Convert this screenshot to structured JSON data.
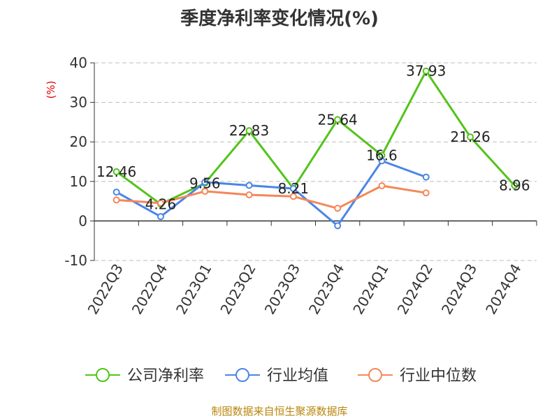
{
  "title": "季度净利率变化情况(%)",
  "source": "制图数据来自恒生聚源数据库",
  "colors": {
    "company": "#52c41a",
    "industry_avg": "#4a86e8",
    "industry_median": "#f4875a",
    "ylabel": "#e00000"
  },
  "chart_data": {
    "type": "line",
    "title": "季度净利率变化情况(%)",
    "xlabel": "",
    "ylabel": "(%)",
    "ylim": [
      -10,
      40
    ],
    "yticks": [
      -10,
      0,
      10,
      20,
      30,
      40
    ],
    "grid": true,
    "legend_position": "bottom",
    "categories": [
      "2022Q3",
      "2022Q4",
      "2023Q1",
      "2023Q2",
      "2023Q3",
      "2023Q4",
      "2024Q1",
      "2024Q2",
      "2024Q3",
      "2024Q4"
    ],
    "series": [
      {
        "name": "公司净利率",
        "values": [
          12.46,
          4.26,
          9.56,
          22.83,
          8.21,
          25.64,
          16.6,
          37.93,
          21.26,
          8.96
        ],
        "labels": [
          "12.46",
          "4.26",
          "9.56",
          "22.83",
          "8.21",
          "25.64",
          "16.6",
          "37.93",
          "21.26",
          "8.96"
        ]
      },
      {
        "name": "行业均值",
        "values": [
          7.3,
          1.1,
          9.8,
          9.0,
          8.2,
          -1.2,
          15.2,
          11.1,
          null,
          null
        ]
      },
      {
        "name": "行业中位数",
        "values": [
          5.3,
          4.5,
          7.5,
          6.6,
          6.2,
          3.2,
          8.9,
          7.1,
          null,
          null
        ]
      }
    ]
  }
}
